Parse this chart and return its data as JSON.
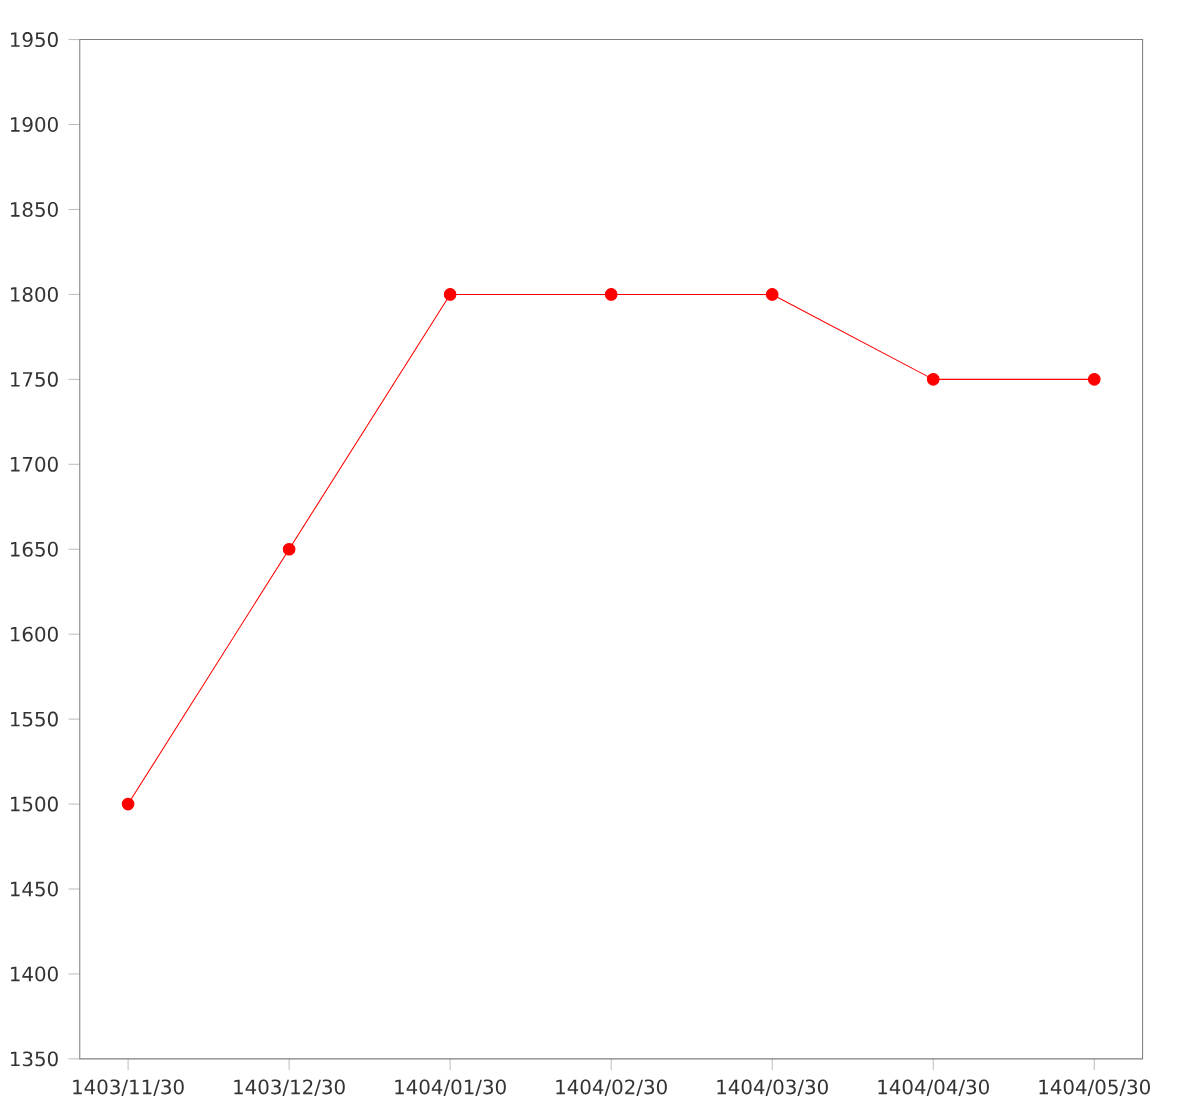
{
  "chart_data": {
    "type": "line",
    "categories": [
      "1403/11/30",
      "1403/12/30",
      "1404/01/30",
      "1404/02/30",
      "1404/03/30",
      "1404/04/30",
      "1404/05/30"
    ],
    "series": [
      {
        "color": "#ff0000",
        "values": [
          1500,
          1650,
          1800,
          1800,
          1800,
          1750,
          1750
        ]
      }
    ],
    "ylim": [
      1350,
      1950
    ],
    "yticks": [
      1350,
      1400,
      1450,
      1500,
      1550,
      1600,
      1650,
      1700,
      1750,
      1800,
      1850,
      1900,
      1950
    ],
    "marker": "circle",
    "line_style": "solid",
    "grid": false
  }
}
